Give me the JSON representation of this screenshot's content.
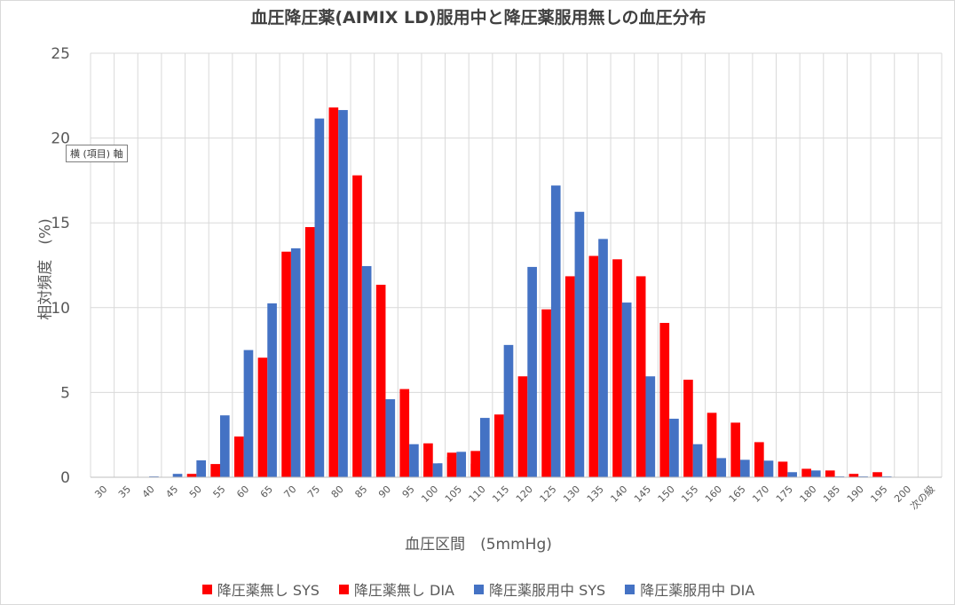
{
  "chart_data": {
    "type": "bar",
    "title": "血圧降圧薬(AIMIX LD)服用中と降圧薬服用無しの血圧分布",
    "xlabel": "血圧区間　(5mmHg)",
    "ylabel": "相対頻度　(%)",
    "ylim": [
      0,
      25
    ],
    "yticks": [
      "0",
      "5",
      "10",
      "15",
      "20",
      "25"
    ],
    "grid": true,
    "legend_position": "bottom",
    "axis_tooltip": "横 (項目) 軸",
    "categories": [
      "30",
      "35",
      "40",
      "45",
      "50",
      "55",
      "60",
      "65",
      "70",
      "75",
      "80",
      "85",
      "90",
      "95",
      "100",
      "105",
      "110",
      "115",
      "120",
      "125",
      "130",
      "135",
      "140",
      "145",
      "150",
      "155",
      "160",
      "165",
      "170",
      "175",
      "180",
      "185",
      "190",
      "195",
      "200",
      "次の級"
    ],
    "series": [
      {
        "name": "降圧薬無し SYS",
        "color": "#ff0000",
        "slot": 0,
        "values": [
          0,
          0,
          0,
          0,
          0,
          0,
          0,
          0,
          0,
          0,
          0,
          0,
          0,
          0.2,
          0.35,
          1.2,
          1.55,
          3.7,
          5.95,
          9.9,
          11.85,
          13.05,
          12.85,
          11.85,
          9.1,
          5.75,
          3.8,
          3.22,
          2.07,
          0.92,
          0.5,
          0.4,
          0.2,
          0.3,
          0,
          0
        ]
      },
      {
        "name": "降圧薬無し DIA",
        "color": "#ff0000",
        "slot": 0,
        "values": [
          0,
          0,
          0,
          0,
          0.2,
          0.78,
          2.4,
          7.05,
          13.3,
          14.75,
          21.8,
          17.8,
          11.35,
          5.2,
          2.0,
          1.45,
          0.8,
          0,
          0,
          0,
          0,
          0,
          0,
          0,
          0,
          0,
          0,
          0,
          0,
          0,
          0,
          0,
          0,
          0,
          0,
          0
        ]
      },
      {
        "name": "降圧薬服用中 SYS",
        "color": "#4472c4",
        "slot": 1,
        "values": [
          0,
          0,
          0,
          0,
          0,
          0,
          0,
          0,
          0,
          0,
          0,
          0,
          0.1,
          0.4,
          0.82,
          1.5,
          3.5,
          7.8,
          12.4,
          17.2,
          15.65,
          14.05,
          10.3,
          5.95,
          3.45,
          1.95,
          1.13,
          1.03,
          0.98,
          0.3,
          0.4,
          0.05,
          0.05,
          0.05,
          0,
          0
        ]
      },
      {
        "name": "降圧薬服用中 DIA",
        "color": "#4472c4",
        "slot": 1,
        "values": [
          0,
          0,
          0.05,
          0.2,
          1.0,
          3.65,
          7.5,
          10.25,
          13.5,
          21.15,
          21.65,
          12.45,
          4.6,
          1.95,
          0.82,
          0.35,
          0.15,
          0.1,
          0,
          0,
          0,
          0,
          0,
          0,
          0,
          0,
          0,
          0,
          0,
          0,
          0,
          0,
          0,
          0,
          0,
          0
        ]
      }
    ]
  }
}
